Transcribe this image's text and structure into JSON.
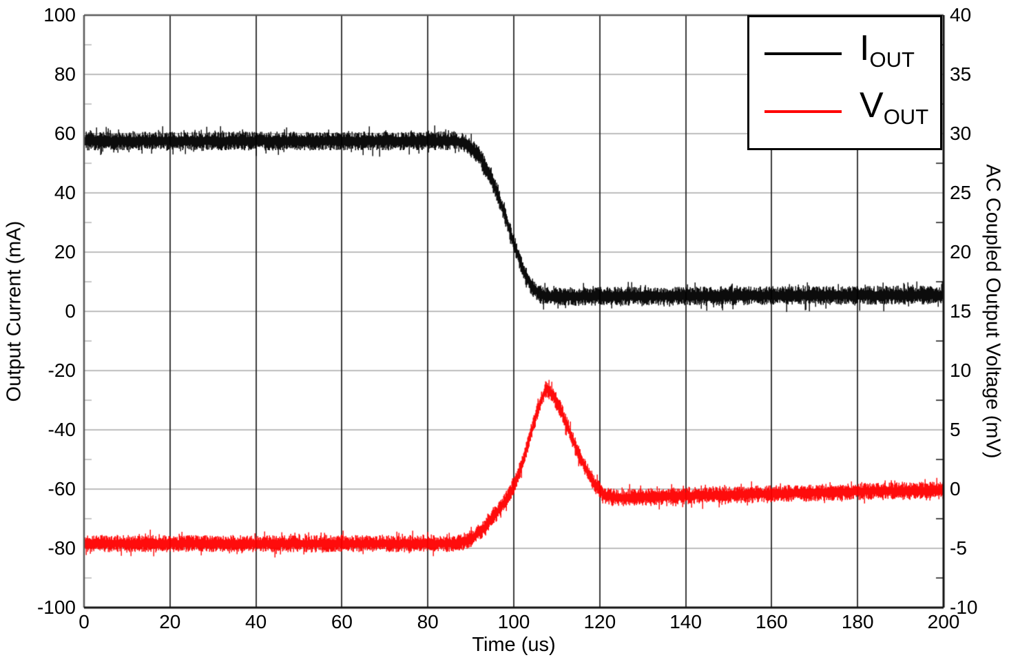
{
  "chart_data": {
    "type": "line",
    "x_axis": {
      "label": "Time (us)",
      "min": 0,
      "max": 200,
      "ticks": [
        "0",
        "20",
        "40",
        "60",
        "80",
        "100",
        "120",
        "140",
        "160",
        "180",
        "200"
      ],
      "minor_step": null
    },
    "y_left": {
      "label": "Output Current (mA)",
      "min": -100,
      "max": 100,
      "ticks": [
        "100",
        "80",
        "60",
        "40",
        "20",
        "0",
        "-20",
        "-40",
        "-60",
        "-80",
        "-100"
      ],
      "minor_step": 10
    },
    "y_right": {
      "label": "AC Coupled Output Voltage (mV)",
      "min": -10,
      "max": 40,
      "ticks": [
        "40",
        "35",
        "30",
        "25",
        "20",
        "15",
        "10",
        "5",
        "0",
        "-5",
        "-10"
      ],
      "minor_step": 2.5
    },
    "grid": {
      "horizontal_color": "#bdbdbd",
      "vertical_color": "#262626",
      "frame_light": "#595959",
      "frame_dark": "#111111",
      "minor_tick_left_color": "#c8c8c8",
      "minor_tick_right_color": "#4d4d4d",
      "background": "#ffffff"
    },
    "legend": {
      "position": "top-right",
      "border_color": "#000000"
    },
    "series": [
      {
        "name": "IOUT",
        "label_main": "I",
        "label_sub": "OUT",
        "color": "#000000",
        "axis": "left",
        "units": "mA",
        "keypoints": [
          [
            0,
            57.5
          ],
          [
            86,
            57.5
          ],
          [
            89,
            56.5
          ],
          [
            92,
            52.5
          ],
          [
            94,
            47
          ],
          [
            96,
            40.5
          ],
          [
            98,
            32
          ],
          [
            100,
            23
          ],
          [
            102,
            14.5
          ],
          [
            104,
            8.5
          ],
          [
            106,
            5.8
          ],
          [
            108,
            5.0
          ],
          [
            160,
            5.3
          ],
          [
            200,
            5.5
          ]
        ],
        "noise": {
          "band": 2.2,
          "spike": 2.4,
          "spike_prob": 0.09
        }
      },
      {
        "name": "VOUT",
        "label_main": "V",
        "label_sub": "OUT",
        "color": "#ff0000",
        "axis": "right",
        "units": "mV",
        "keypoints": [
          [
            0,
            -4.6
          ],
          [
            87,
            -4.6
          ],
          [
            90,
            -4.2
          ],
          [
            93,
            -3.3
          ],
          [
            96,
            -2.0
          ],
          [
            98,
            -1.0
          ],
          [
            100,
            0.3
          ],
          [
            102,
            2.2
          ],
          [
            104,
            4.8
          ],
          [
            106,
            7.2
          ],
          [
            107.5,
            8.5
          ],
          [
            109,
            8.0
          ],
          [
            111,
            6.6
          ],
          [
            113,
            4.8
          ],
          [
            115,
            3.0
          ],
          [
            117,
            1.5
          ],
          [
            119,
            0.3
          ],
          [
            121,
            -0.5
          ],
          [
            124,
            -0.75
          ],
          [
            135,
            -0.6
          ],
          [
            160,
            -0.4
          ],
          [
            185,
            -0.15
          ],
          [
            200,
            -0.1
          ]
        ],
        "noise": {
          "band": 0.5,
          "spike": 0.5,
          "spike_prob": 0.09
        }
      }
    ]
  }
}
